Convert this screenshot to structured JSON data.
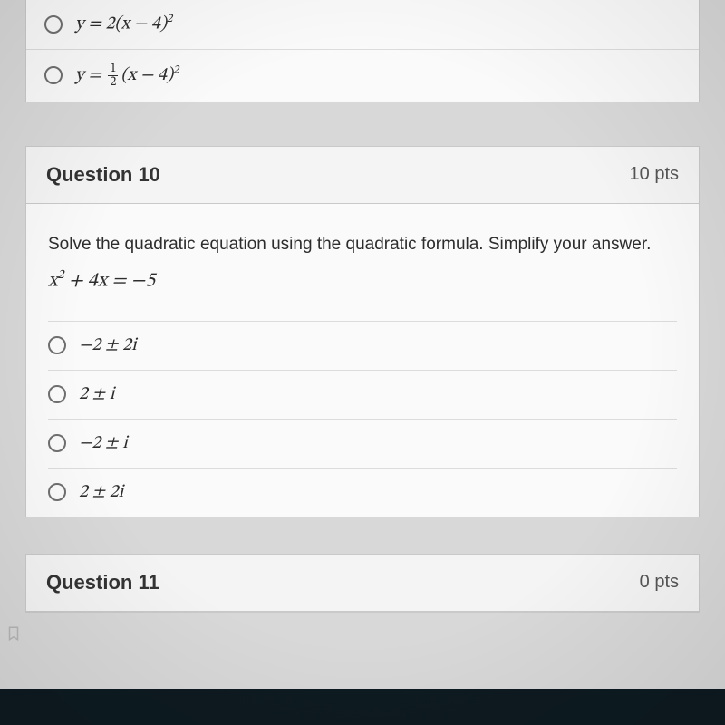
{
  "question9": {
    "options": [
      {
        "name": "q9-option-3",
        "tex": "y = 2(x − 4)<sup>2</sup>"
      },
      {
        "name": "q9-option-4",
        "tex": "y = <span class=\"frac\"><span class=\"num up\">1</span><span class=\"den up\">2</span></span>(x − 4)<sup>2</sup>"
      }
    ]
  },
  "question10": {
    "title": "Question 10",
    "points": "10 pts",
    "prompt": "Solve the quadratic equation using the quadratic formula.  Simplify your answer.",
    "equation": "x<sup>2</sup> + 4x = −5",
    "options": [
      {
        "name": "q10-option-1",
        "label": "−2 ± 2i"
      },
      {
        "name": "q10-option-2",
        "label": "2 ± i"
      },
      {
        "name": "q10-option-3",
        "label": "−2 ± i"
      },
      {
        "name": "q10-option-4",
        "label": "2 ± 2i"
      }
    ]
  },
  "question11": {
    "title": "Question 11",
    "points": "0 pts"
  },
  "colors": {
    "page_bg": "#d8d8d8",
    "card_bg": "#fafafa",
    "header_bg": "#f4f4f4",
    "border": "#c9c9c9",
    "option_divider": "#dcdcdc",
    "text": "#2d2d2d",
    "taskbar": "#0d1a20"
  },
  "fonts": {
    "ui": "-apple-system / Helvetica Neue",
    "math": "Cambria Math / STIX serif",
    "title_size_pt": 22,
    "body_size_pt": 19,
    "option_size_pt": 20
  }
}
